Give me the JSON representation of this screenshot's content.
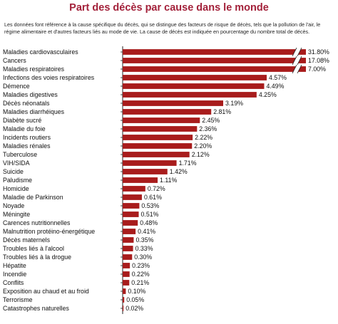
{
  "title": "Part des décès par cause dans le monde",
  "subtitle": "Les données font référence à la cause spécifique du décès, qui se distingue des facteurs de risque de décès, tels que la pollution de l'air, le régime alimentaire et d'autres facteurs liés au mode de vie. La cause de décès est indiquée en pourcentage du nombre total de décès.",
  "colors": {
    "bar": "#a81c1c",
    "title": "#a3213a",
    "axis": "#222222"
  },
  "chart_data": {
    "type": "bar",
    "orientation": "horizontal",
    "axis_break": true,
    "grid": false,
    "categories": [
      "Maladies cardiovasculaires",
      "Cancers",
      "Maladies respiratoires",
      "Infections des voies respiratoires",
      "Démence",
      "Maladies digestives",
      "Décès néonatals",
      "Maladies diarrhéiques",
      "Diabète sucré",
      "Maladie du foie",
      "Incidents routiers",
      "Maladies rénales",
      "Tuberculose",
      "VIH/SIDA",
      "Suicide",
      "Paludisme",
      "Homicide",
      "Maladie de Parkinson",
      "Noyade",
      "Méningite",
      "Carences nutritionnelles",
      "Malnutrition protéino-énergétique",
      "Décès maternels",
      "Troubles liés à l'alcool",
      "Troubles liés à la drogue",
      "Hépatite",
      "Incendie",
      "Conflits",
      "Exposition au chaud et au froid",
      "Terrorisme",
      "Catastrophes naturelles"
    ],
    "values": [
      31.8,
      17.08,
      7.0,
      4.57,
      4.49,
      4.25,
      3.19,
      2.81,
      2.45,
      2.36,
      2.22,
      2.2,
      2.12,
      1.71,
      1.42,
      1.11,
      0.72,
      0.61,
      0.53,
      0.51,
      0.48,
      0.41,
      0.35,
      0.33,
      0.3,
      0.23,
      0.22,
      0.21,
      0.1,
      0.05,
      0.02
    ],
    "labels": [
      "31.80%",
      "17.08%",
      "7.00%",
      "4.57%",
      "4.49%",
      "4.25%",
      "3.19%",
      "2.81%",
      "2.45%",
      "2.36%",
      "2.22%",
      "2.20%",
      "2.12%",
      "1.71%",
      "1.42%",
      "1.11%",
      "0.72%",
      "0.61%",
      "0.53%",
      "0.51%",
      "0.48%",
      "0.41%",
      "0.35%",
      "0.33%",
      "0.30%",
      "0.23%",
      "0.22%",
      "0.21%",
      "0.10%",
      "0.05%",
      "0.02%"
    ]
  }
}
